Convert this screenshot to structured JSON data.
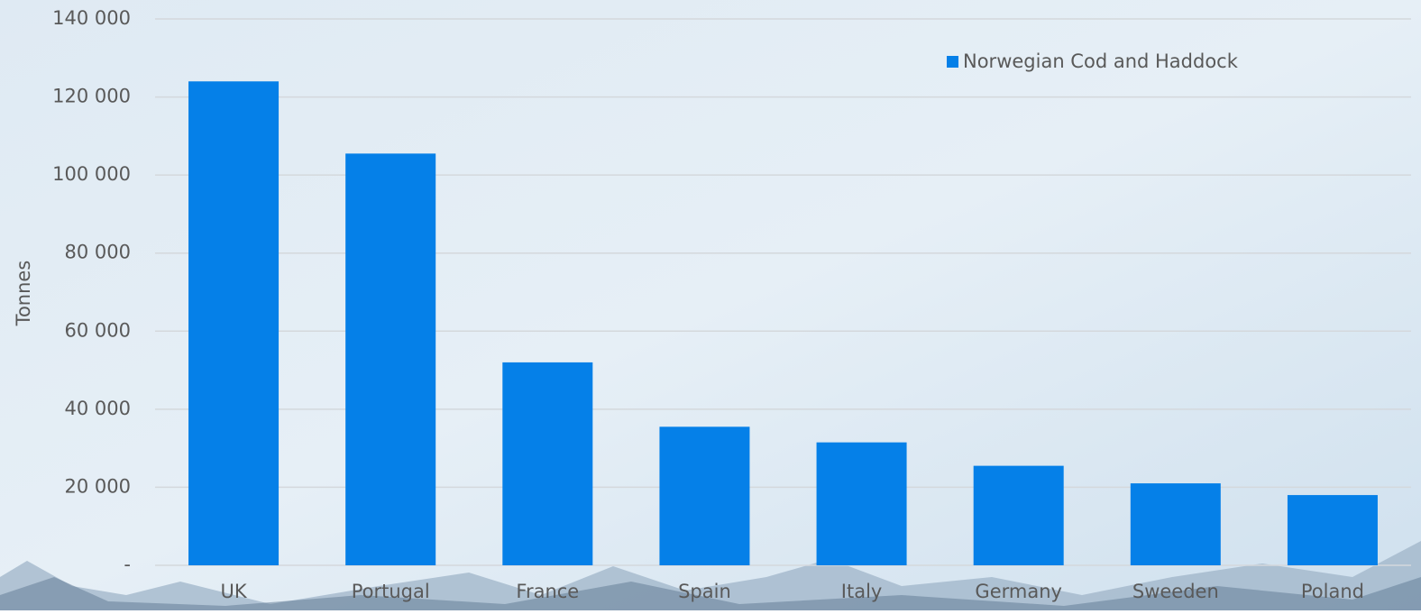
{
  "chart_data": {
    "type": "bar",
    "y_label": "Tonnes",
    "categories": [
      "UK",
      "Portugal",
      "France",
      "Spain",
      "Italy",
      "Germany",
      "Sweeden",
      "Poland"
    ],
    "series": [
      {
        "name": "Norwegian Cod and Haddock",
        "color": "#0580e8",
        "values": [
          124000,
          105500,
          52000,
          35500,
          31500,
          25500,
          21000,
          18000
        ]
      }
    ],
    "ylim": [
      0,
      140000
    ],
    "yticks": [
      {
        "value": 0,
        "label": "-"
      },
      {
        "value": 20000,
        "label": "20 000"
      },
      {
        "value": 40000,
        "label": "40 000"
      },
      {
        "value": 60000,
        "label": "60 000"
      },
      {
        "value": 80000,
        "label": "80 000"
      },
      {
        "value": 100000,
        "label": "100 000"
      },
      {
        "value": 120000,
        "label": "120 000"
      },
      {
        "value": 140000,
        "label": "140 000"
      }
    ],
    "grid": true,
    "legend": "top-right"
  }
}
